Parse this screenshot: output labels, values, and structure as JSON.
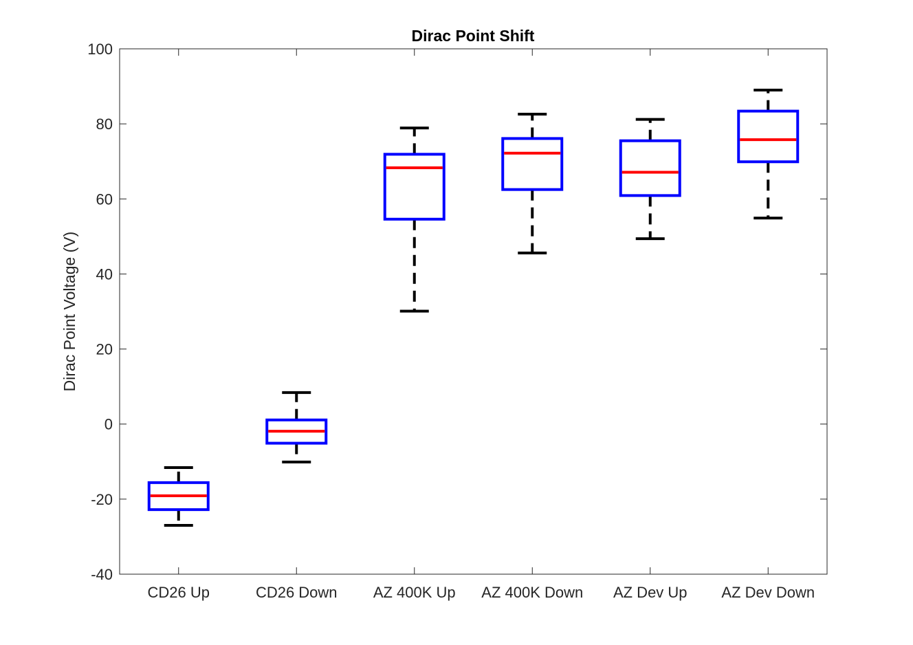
{
  "chart_data": {
    "type": "boxplot",
    "title": "Dirac Point Shift",
    "xlabel": "",
    "ylabel": "Dirac Point Voltage (V)",
    "ylim": [
      -40,
      100
    ],
    "yticks": [
      -40,
      -20,
      0,
      20,
      40,
      60,
      80,
      100
    ],
    "ytick_labels": [
      "-40",
      "-20",
      "0",
      "20",
      "40",
      "60",
      "80",
      "100"
    ],
    "grid": false,
    "categories": [
      "CD26 Up",
      "CD26 Down",
      "AZ 400K Up",
      "AZ 400K Down",
      "AZ Dev Up",
      "AZ Dev Down"
    ],
    "boxes": [
      {
        "whisker_low": -27,
        "q1": -22.8,
        "median": -19.1,
        "q3": -15.6,
        "whisker_high": -11.6
      },
      {
        "whisker_low": -10.1,
        "q1": -5.1,
        "median": -1.9,
        "q3": 1.1,
        "whisker_high": 8.4
      },
      {
        "whisker_low": 30.1,
        "q1": 54.6,
        "median": 68.3,
        "q3": 71.9,
        "whisker_high": 78.9
      },
      {
        "whisker_low": 45.6,
        "q1": 62.5,
        "median": 72.2,
        "q3": 76.1,
        "whisker_high": 82.6
      },
      {
        "whisker_low": 49.4,
        "q1": 60.9,
        "median": 67.1,
        "q3": 75.5,
        "whisker_high": 81.2
      },
      {
        "whisker_low": 54.9,
        "q1": 69.9,
        "median": 75.8,
        "q3": 83.4,
        "whisker_high": 89.0
      }
    ],
    "colors": {
      "box": "#0000ff",
      "median": "#ff0000",
      "whisker": "#000000",
      "axis": "#262626"
    }
  }
}
